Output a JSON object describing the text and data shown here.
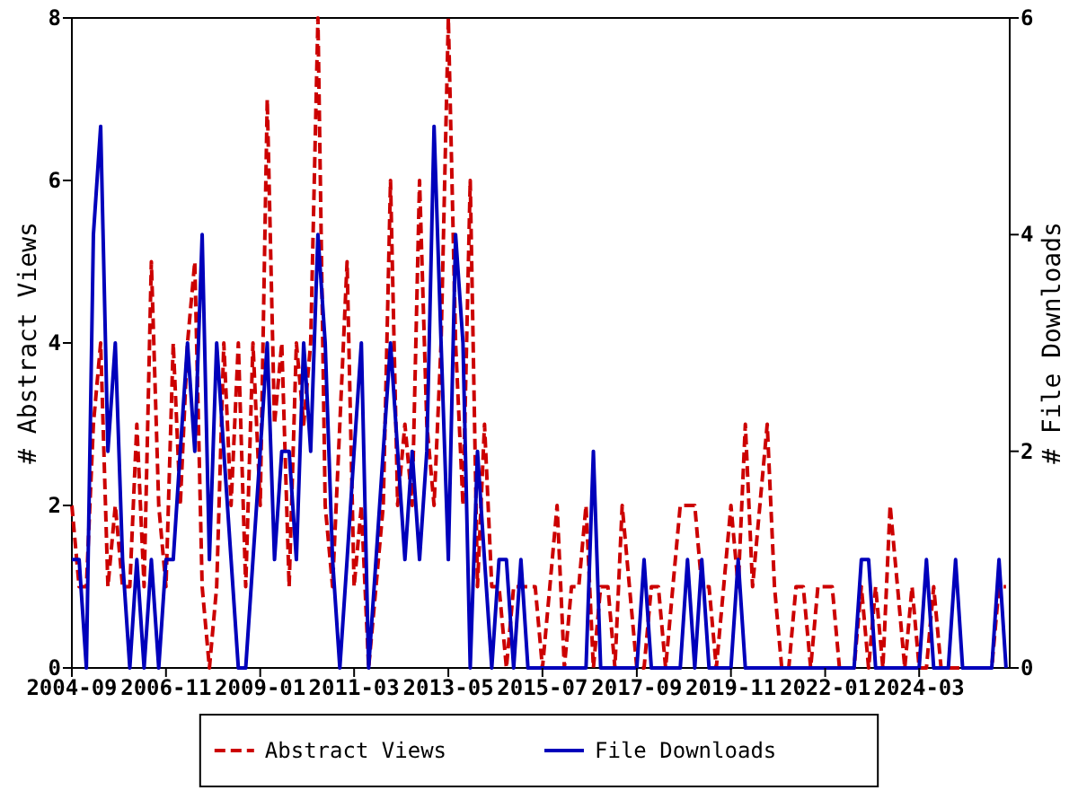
{
  "chart_data": {
    "type": "line",
    "ylabel": "# Abstract Views",
    "y2label": "# File Downloads",
    "x": [
      "2004-09",
      "2004-11",
      "2005-01",
      "2005-03",
      "2005-05",
      "2005-07",
      "2005-09",
      "2005-11",
      "2006-01",
      "2006-03",
      "2006-05",
      "2006-07",
      "2006-09",
      "2006-11",
      "2007-01",
      "2007-03",
      "2007-05",
      "2007-07",
      "2007-09",
      "2007-11",
      "2008-01",
      "2008-03",
      "2008-05",
      "2008-07",
      "2008-09",
      "2008-11",
      "2009-01",
      "2009-03",
      "2009-05",
      "2009-07",
      "2009-09",
      "2009-11",
      "2010-01",
      "2010-03",
      "2010-05",
      "2010-07",
      "2010-09",
      "2010-11",
      "2011-01",
      "2011-03",
      "2011-05",
      "2011-07",
      "2011-09",
      "2011-11",
      "2012-01",
      "2012-03",
      "2012-05",
      "2012-07",
      "2012-09",
      "2012-11",
      "2013-01",
      "2013-03",
      "2013-05",
      "2013-07",
      "2013-09",
      "2013-11",
      "2014-01",
      "2014-03",
      "2014-05",
      "2014-07",
      "2014-09",
      "2014-11",
      "2015-01",
      "2015-03",
      "2015-05",
      "2015-07",
      "2015-09",
      "2015-11",
      "2016-01",
      "2016-03",
      "2016-05",
      "2016-07",
      "2016-09",
      "2016-11",
      "2017-01",
      "2017-03",
      "2017-05",
      "2017-07",
      "2017-09",
      "2017-11",
      "2018-01",
      "2018-03",
      "2018-05",
      "2018-07",
      "2018-09",
      "2018-11",
      "2019-01",
      "2019-03",
      "2019-05",
      "2019-07",
      "2019-09",
      "2019-11",
      "2020-01",
      "2020-03",
      "2020-05",
      "2020-07",
      "2020-09",
      "2020-11",
      "2021-01",
      "2021-03",
      "2021-05",
      "2021-07",
      "2021-09",
      "2021-11",
      "2022-01",
      "2022-03",
      "2022-05",
      "2022-07",
      "2022-09",
      "2022-11",
      "2023-01",
      "2023-03",
      "2023-05",
      "2023-07",
      "2023-09",
      "2023-11",
      "2024-01",
      "2024-03",
      "2024-05",
      "2024-07",
      "2024-09",
      "2024-11",
      "2025-01",
      "2025-03",
      "2025-05",
      "2025-07",
      "2025-09",
      "2025-11",
      "2026-01",
      "2026-03"
    ],
    "series": [
      {
        "name": "Abstract Views",
        "color": "#cc0000",
        "line_style": "dashed",
        "values": [
          2,
          1,
          1,
          3,
          4,
          1,
          2,
          1,
          1,
          3,
          1,
          5,
          2,
          1,
          4,
          2,
          4,
          5,
          1,
          0,
          1,
          4,
          2,
          4,
          1,
          4,
          2,
          7,
          3,
          4,
          1,
          4,
          3,
          4,
          8,
          2,
          1,
          3,
          5,
          1,
          2,
          0,
          1,
          2,
          6,
          2,
          3,
          2,
          6,
          3,
          2,
          4,
          8,
          4,
          2,
          6,
          1,
          3,
          1,
          1,
          0,
          1,
          1,
          1,
          1,
          0,
          1,
          2,
          0,
          1,
          1,
          2,
          0,
          1,
          1,
          0,
          2,
          1,
          0,
          0,
          1,
          1,
          0,
          1,
          2,
          2,
          2,
          1,
          1,
          0,
          1,
          2,
          1,
          3,
          1,
          2,
          3,
          1,
          0,
          0,
          1,
          1,
          0,
          1,
          1,
          1,
          0,
          0,
          0,
          1,
          0,
          1,
          0,
          2,
          1,
          0,
          1,
          0,
          0,
          1,
          0,
          0,
          0,
          0,
          0,
          0,
          0,
          0,
          1,
          1
        ]
      },
      {
        "name": "File Downloads",
        "color": "#0000bb",
        "line_style": "solid",
        "axis": "y2",
        "values": [
          1,
          1,
          0,
          4,
          5,
          2,
          3,
          1,
          0,
          1,
          0,
          1,
          0,
          1,
          1,
          2,
          3,
          2,
          4,
          1,
          3,
          2,
          1,
          0,
          0,
          1,
          2,
          3,
          1,
          2,
          2,
          1,
          3,
          2,
          4,
          3,
          1,
          0,
          1,
          2,
          3,
          0,
          1,
          2,
          3,
          2,
          1,
          2,
          1,
          2,
          5,
          3,
          1,
          4,
          3,
          0,
          2,
          1,
          0,
          1,
          1,
          0,
          1,
          0,
          0,
          0,
          0,
          0,
          0,
          0,
          0,
          0,
          2,
          0,
          0,
          0,
          0,
          0,
          0,
          1,
          0,
          0,
          0,
          0,
          0,
          1,
          0,
          1,
          0,
          0,
          0,
          0,
          1,
          0,
          0,
          0,
          0,
          0,
          0,
          0,
          0,
          0,
          0,
          0,
          0,
          0,
          0,
          0,
          0,
          1,
          1,
          0,
          0,
          0,
          0,
          0,
          0,
          0,
          1,
          0,
          0,
          0,
          1,
          0,
          0,
          0,
          0,
          0,
          1,
          0
        ]
      }
    ],
    "xlim": [
      "2004-09",
      "2026-04"
    ],
    "xticks": [
      "2004-09",
      "2006-11",
      "2009-01",
      "2011-03",
      "2013-05",
      "2015-07",
      "2017-09",
      "2019-11",
      "2022-01",
      "2024-03"
    ],
    "ylim": [
      0,
      8
    ],
    "yticks": [
      0,
      2,
      4,
      6,
      8
    ],
    "y2lim": [
      0,
      6
    ],
    "y2ticks": [
      0,
      2,
      4,
      6
    ],
    "grid": false,
    "legend": "bottom",
    "marker": "none"
  }
}
